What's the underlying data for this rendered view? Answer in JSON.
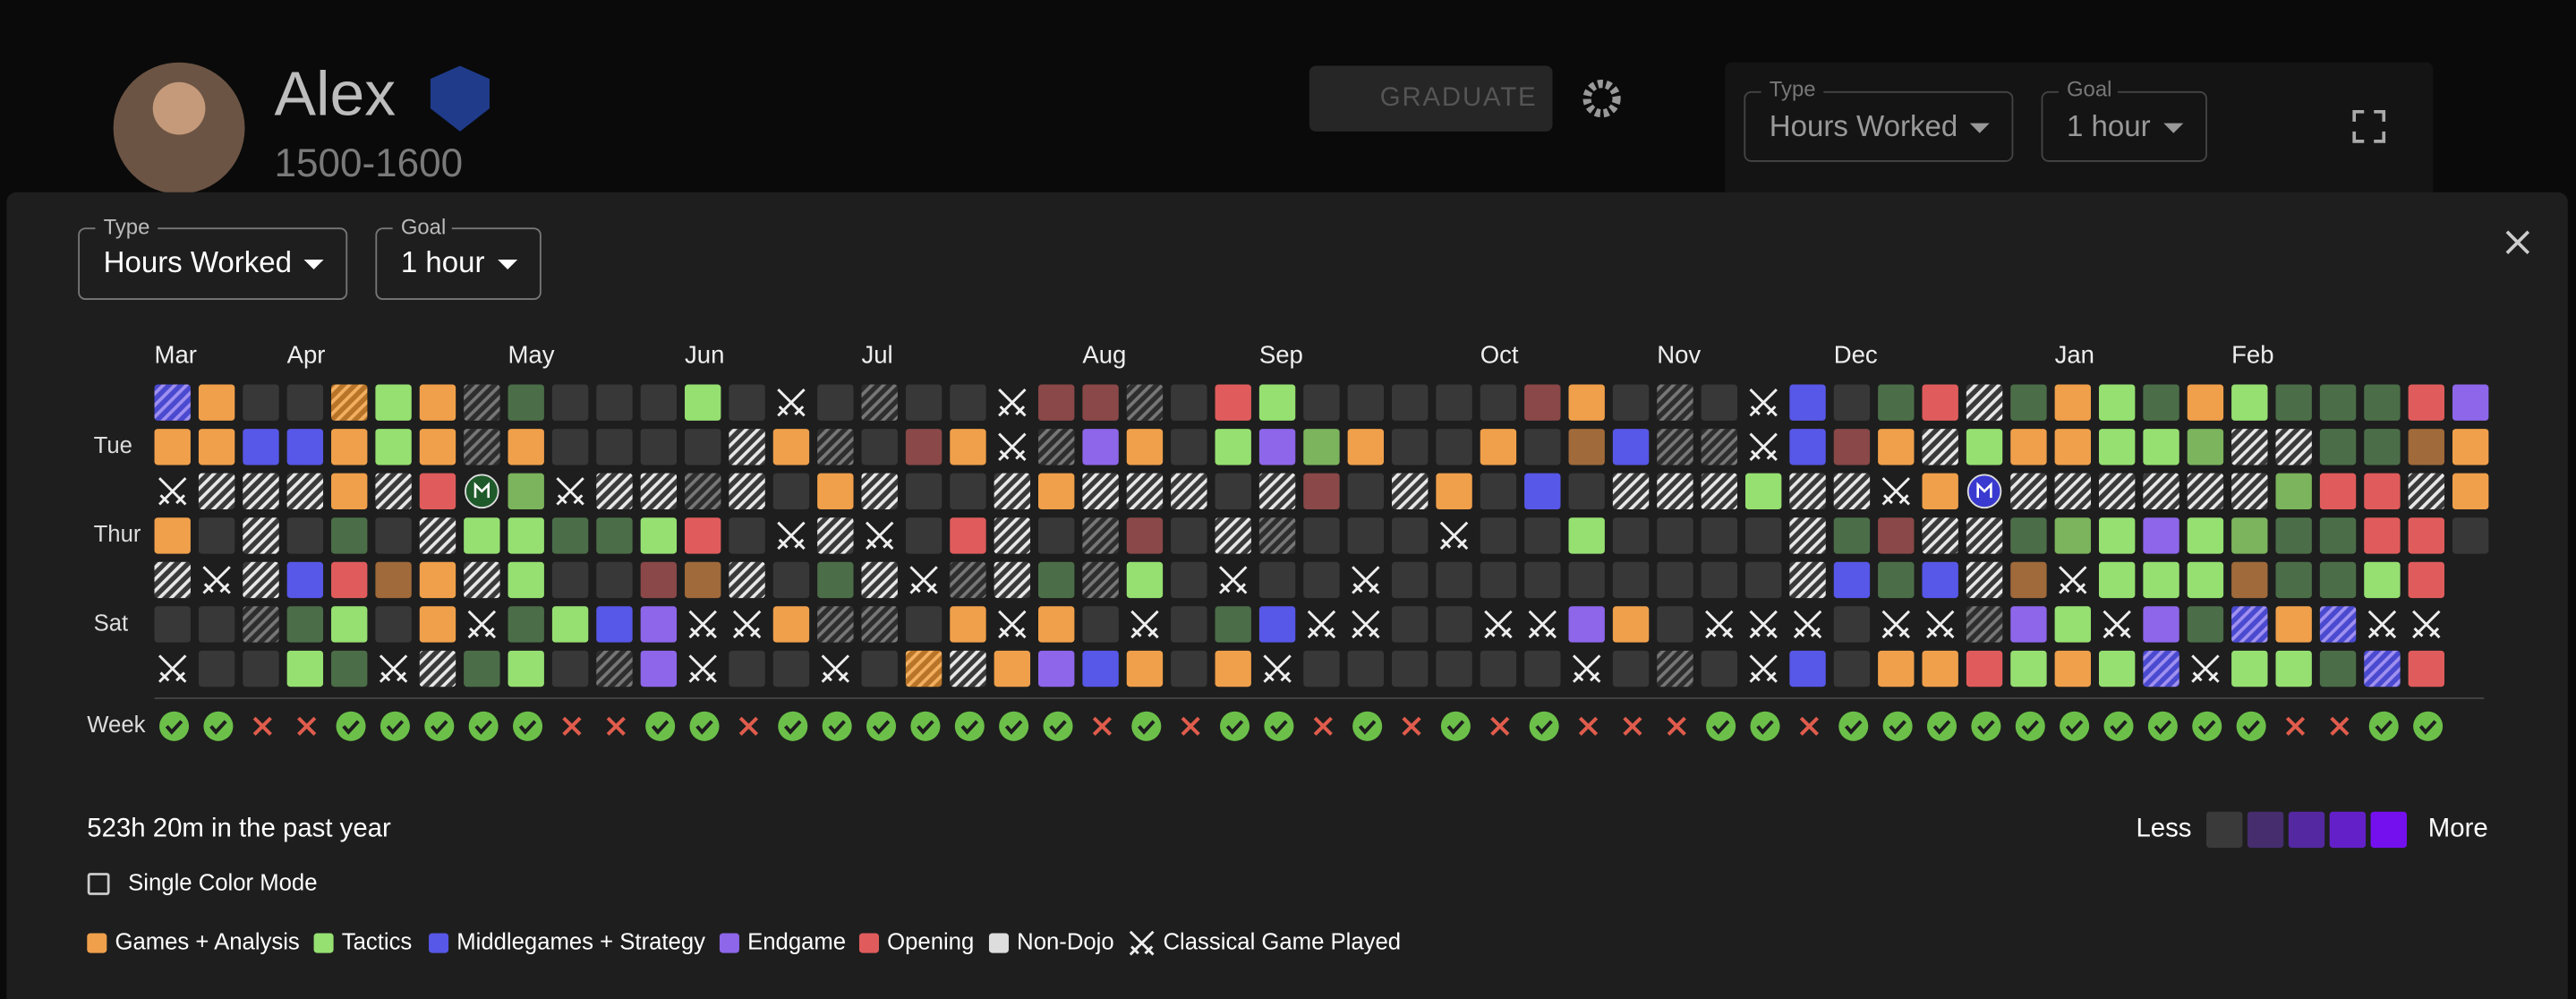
{
  "header": {
    "name": "Alex",
    "rating": "1500-1600",
    "graduate": "GRADUATE",
    "type_label": "Type",
    "type_value": "Hours Worked",
    "goal_label": "Goal",
    "goal_value": "1 hour"
  },
  "dialog": {
    "type_label": "Type",
    "type_value": "Hours Worked",
    "goal_label": "Goal",
    "goal_value": "1 hour",
    "months": [
      "Mar",
      "Apr",
      "May",
      "Jun",
      "Jul",
      "Aug",
      "Sep",
      "Oct",
      "Nov",
      "Dec",
      "Jan",
      "Feb"
    ],
    "day_labels": [
      "Tue",
      "Thur",
      "Sat"
    ],
    "week_label": "Week",
    "palette": {
      "o": "#f0a04b",
      "g": "#96e072",
      "G": "#4b6e48",
      "m": "#7bb45c",
      "b": "#5757e8",
      "p": "#8d66ea",
      "r": "#e05c5c",
      "R": "#8a4848",
      "B": "#a06a3a",
      "n": "#383838"
    },
    "rows": [
      "PonnOgodGnnngnxndnnxRRdnrgnnnnnRondnxbnGrhGogGogGGGrp",
      "oobbogodonnnnhodnRoxdpongpmonnonBbddxbRohgooggmhhGGBo",
      "xhhhohrMmxhhdhnohnnhohhhnhRnhonbnhhhghhxoNhhhhhhmrrho",
      "onhnGnhggGGgrnxhxnrhndRnhdnnnxnngnnnnhGRhhGmgpgmGGrrn",
      "hxhbrBohgnnRBhnGhxdhGdgnxnnxnnnnnnnnnhbGbhBxgggBGGgr.",
      "nndGgnoxGgbpxxoddnoxonxnGbxxnnxxponxxxnxxdpgxpGPoPxx.",
      "xnngGxhGgndpxnnxnOhopbonoxnnnnnnxndnxbnoorgogPxggGPr."
    ],
    "weeks_met": [
      true,
      true,
      false,
      false,
      true,
      true,
      true,
      true,
      true,
      false,
      false,
      true,
      true,
      false,
      true,
      true,
      true,
      true,
      true,
      true,
      true,
      false,
      true,
      false,
      true,
      true,
      false,
      true,
      false,
      true,
      false,
      true,
      false,
      false,
      false,
      true,
      true,
      false,
      true,
      true,
      true,
      true,
      true,
      true,
      true,
      true,
      true,
      true,
      false,
      false,
      true,
      true
    ],
    "summary": "523h 20m in the past year",
    "less": "Less",
    "more": "More",
    "scale_colors": [
      "#3a3a3a",
      "#452d6e",
      "#5428a0",
      "#6420c8",
      "#7410ee"
    ],
    "single_color": "Single Color Mode",
    "legend": [
      {
        "label": "Games + Analysis",
        "color": "#f0a04b"
      },
      {
        "label": "Tactics",
        "color": "#96e072"
      },
      {
        "label": "Middlegames + Strategy",
        "color": "#5757e8"
      },
      {
        "label": "Endgame",
        "color": "#8d66ea"
      },
      {
        "label": "Opening",
        "color": "#e05c5c"
      },
      {
        "label": "Non-Dojo",
        "color": "#dddddd"
      }
    ],
    "classical": "Classical Game Played"
  }
}
